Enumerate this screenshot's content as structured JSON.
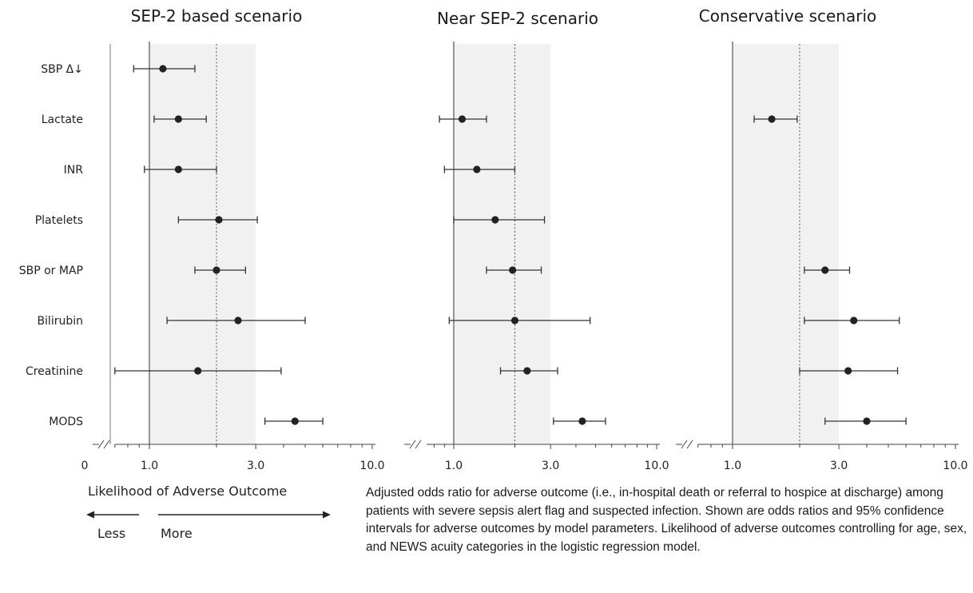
{
  "chart_data": [
    {
      "type": "forest",
      "title": "SEP-2 based scenario",
      "scale": "log",
      "xticks": [
        "0",
        "1.0",
        "3.0",
        "10.0"
      ],
      "reference_line": 1.0,
      "shaded_range": [
        1.0,
        3.0
      ],
      "dotted_line": 2.0,
      "rows": [
        {
          "label": "SBP Δ↓",
          "or": 1.15,
          "lo": 0.85,
          "hi": 1.6
        },
        {
          "label": "Lactate",
          "or": 1.35,
          "lo": 1.05,
          "hi": 1.8
        },
        {
          "label": "INR",
          "or": 1.35,
          "lo": 0.95,
          "hi": 2.0
        },
        {
          "label": "Platelets",
          "or": 2.05,
          "lo": 1.35,
          "hi": 3.05
        },
        {
          "label": "SBP or MAP",
          "or": 2.0,
          "lo": 1.6,
          "hi": 2.7
        },
        {
          "label": "Bilirubin",
          "or": 2.5,
          "lo": 1.2,
          "hi": 5.0
        },
        {
          "label": "Creatinine",
          "or": 1.65,
          "lo": 0.7,
          "hi": 3.9
        },
        {
          "label": "MODS",
          "or": 4.5,
          "lo": 3.3,
          "hi": 6.0
        }
      ]
    },
    {
      "type": "forest",
      "title": "Near SEP-2 scenario",
      "scale": "log",
      "xticks": [
        "1.0",
        "3.0",
        "10.0"
      ],
      "reference_line": 1.0,
      "shaded_range": [
        1.0,
        3.0
      ],
      "dotted_line": 2.0,
      "rows": [
        {
          "label": "Lactate",
          "or": 1.1,
          "lo": 0.85,
          "hi": 1.45
        },
        {
          "label": "INR",
          "or": 1.3,
          "lo": 0.9,
          "hi": 2.0
        },
        {
          "label": "Platelets",
          "or": 1.6,
          "lo": 1.0,
          "hi": 2.8
        },
        {
          "label": "SBP or MAP",
          "or": 1.95,
          "lo": 1.45,
          "hi": 2.7
        },
        {
          "label": "Bilirubin",
          "or": 2.0,
          "lo": 0.95,
          "hi": 4.7
        },
        {
          "label": "Creatinine",
          "or": 2.3,
          "lo": 1.7,
          "hi": 3.25
        },
        {
          "label": "MODS",
          "or": 4.3,
          "lo": 3.1,
          "hi": 5.6
        }
      ]
    },
    {
      "type": "forest",
      "title": "Conservative scenario",
      "scale": "log",
      "xticks": [
        "1.0",
        "3.0",
        "10.0"
      ],
      "reference_line": 1.0,
      "shaded_range": [
        1.0,
        3.0
      ],
      "dotted_line": 2.0,
      "rows": [
        {
          "label": "Lactate",
          "or": 1.5,
          "lo": 1.25,
          "hi": 1.95
        },
        {
          "label": "SBP or MAP",
          "or": 2.6,
          "lo": 2.1,
          "hi": 3.35
        },
        {
          "label": "Bilirubin",
          "or": 3.5,
          "lo": 2.1,
          "hi": 5.6
        },
        {
          "label": "Creatinine",
          "or": 3.3,
          "lo": 2.0,
          "hi": 5.5
        },
        {
          "label": "MODS",
          "or": 4.0,
          "lo": 2.6,
          "hi": 6.0
        }
      ]
    }
  ],
  "axis_annotation": {
    "label": "Likelihood of Adverse Outcome",
    "less": "Less",
    "more": "More"
  },
  "caption": "Adjusted odds ratio for adverse outcome (i.e., in-hospital death or referral to hospice at discharge) among patients with severe sepsis alert flag and suspected infection. Shown are odds ratios and 95% confidence intervals for adverse outcomes by model parameters. Likelihood of adverse outcomes controlling for age, sex, and NEWS acuity categories in the logistic regression model.",
  "colors": {
    "shade": "#f1f1f1",
    "line": "#333333",
    "marker": "#222222"
  }
}
